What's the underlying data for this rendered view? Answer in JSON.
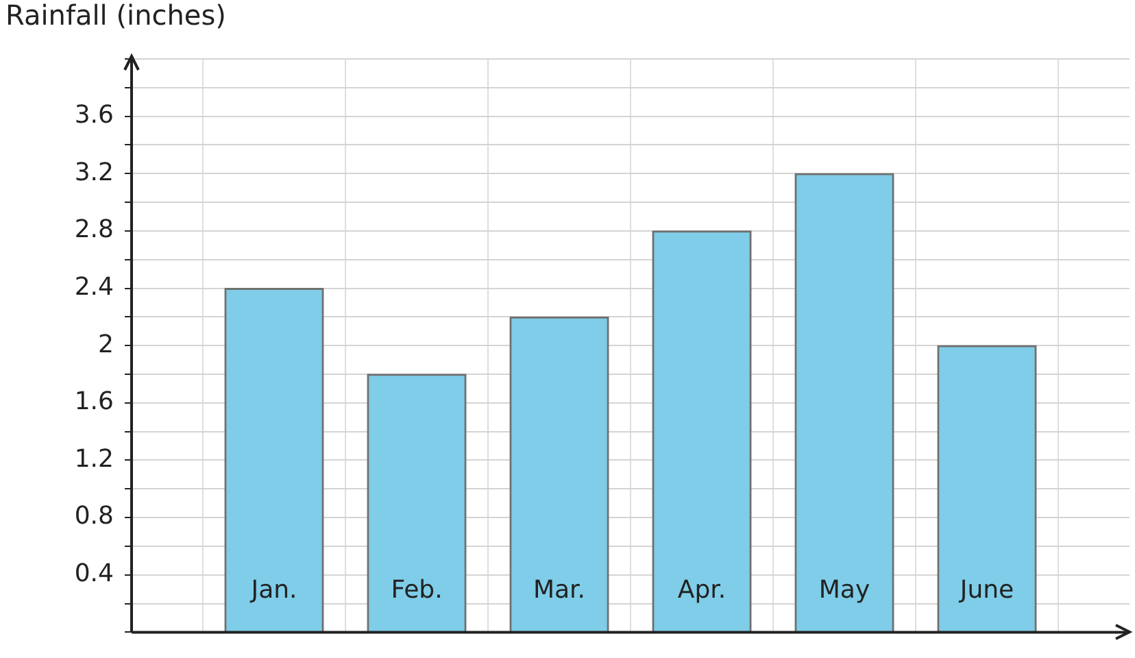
{
  "chart_data": {
    "type": "bar",
    "ylabel": "Rainfall (inches)",
    "categories": [
      "Jan.",
      "Feb.",
      "Mar.",
      "Apr.",
      "May",
      "June"
    ],
    "values": [
      2.4,
      1.8,
      2.2,
      2.8,
      3.2,
      2.0
    ],
    "color": "#7fcde8",
    "ylim": [
      0,
      4
    ],
    "yticks": [
      {
        "value": 0,
        "label": null
      },
      {
        "value": 0.2,
        "label": null
      },
      0.4,
      {
        "value": 0.6,
        "label": null
      },
      0.8,
      {
        "value": 1,
        "label": null
      },
      1.2,
      {
        "value": 1.4,
        "label": null
      },
      1.6,
      {
        "value": 1.8,
        "label": null
      },
      2,
      {
        "value": 2.2,
        "label": null
      },
      2.4,
      {
        "value": 2.6,
        "label": null
      },
      2.8,
      {
        "value": 3,
        "label": null
      },
      3.2,
      {
        "value": 3.4,
        "label": null
      },
      3.6,
      {
        "value": 3.8,
        "label": null
      },
      {
        "value": 4,
        "label": null
      }
    ],
    "grid": true
  }
}
